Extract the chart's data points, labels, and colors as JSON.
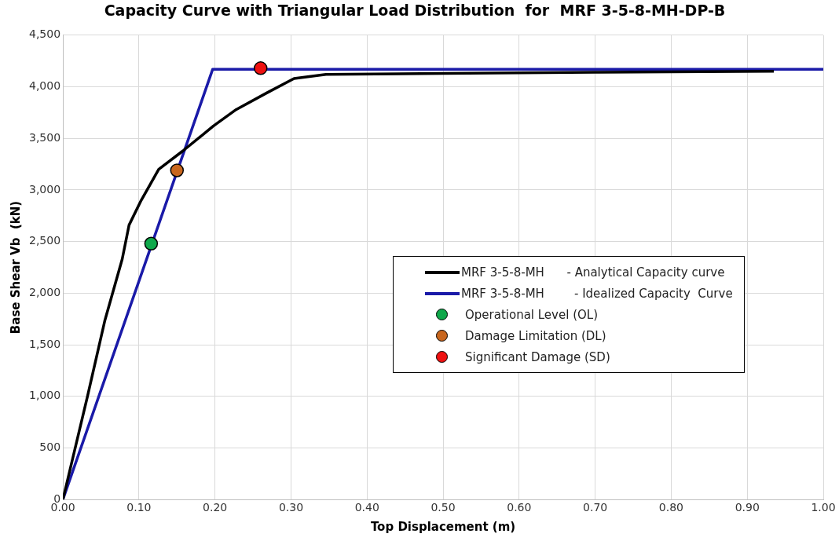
{
  "chart_data": {
    "type": "line",
    "title": "Capacity Curve with Triangular Load Distribution  for  MRF 3-5-8-MH-DP-B",
    "xlabel": "Top Displacement (m)",
    "ylabel": "Base Shear Vb  (kN)",
    "xlim": [
      0,
      1
    ],
    "xticks": [
      {
        "value": 0,
        "label": "0.00"
      },
      {
        "value": 0.1,
        "label": "0.10"
      },
      {
        "value": 0.2,
        "label": "0.20"
      },
      {
        "value": 0.3,
        "label": "0.30"
      },
      {
        "value": 0.4,
        "label": "0.40"
      },
      {
        "value": 0.5,
        "label": "0.50"
      },
      {
        "value": 0.6,
        "label": "0.60"
      },
      {
        "value": 0.7,
        "label": "0.70"
      },
      {
        "value": 0.8,
        "label": "0.80"
      },
      {
        "value": 0.9,
        "label": "0.90"
      },
      {
        "value": 1,
        "label": "1.00"
      }
    ],
    "ylim": [
      0,
      4500
    ],
    "yticks": [
      0,
      500,
      {
        "value": 1000,
        "label": "1,000"
      },
      {
        "value": 1500,
        "label": "1,500"
      },
      {
        "value": 2000,
        "label": "2,000"
      },
      {
        "value": 2500,
        "label": "2,500"
      },
      {
        "value": 3000,
        "label": "3,000"
      },
      {
        "value": 3500,
        "label": "3,500"
      },
      {
        "value": 4000,
        "label": "4,000"
      },
      {
        "value": 4500,
        "label": "4,500"
      }
    ],
    "grid": true,
    "legend": "right",
    "marker": "none",
    "line_style": "solid",
    "series": [
      {
        "name": "MRF 3-5-8-MH      - Analytical Capacity curve",
        "color": "#000000",
        "x": [
          0,
          0.032,
          0.055,
          0.078,
          0.087,
          0.103,
          0.126,
          0.158,
          0.198,
          0.228,
          0.268,
          0.304,
          0.346,
          0.5,
          0.7,
          0.935
        ],
        "values": [
          0,
          990,
          1730,
          2330,
          2660,
          2900,
          3200,
          3380,
          3620,
          3780,
          3940,
          4080,
          4120,
          4130,
          4140,
          4150
        ]
      },
      {
        "name": "MRF 3-5-8-MH        - Idealized Capacity  Curve",
        "color": "#1a1aa8",
        "x": [
          0,
          0.197,
          1
        ],
        "values": [
          0,
          4170,
          4170
        ]
      },
      {
        "name": "Operational Level (OL)",
        "type": "scatter",
        "marker": "circle",
        "color": "#0fa84a",
        "x": [
          0.116
        ],
        "values": [
          2480
        ]
      },
      {
        "name": "Damage Limitation (DL)",
        "type": "scatter",
        "marker": "circle",
        "color": "#c8661e",
        "x": [
          0.15
        ],
        "values": [
          3190
        ]
      },
      {
        "name": "Significant Damage (SD)",
        "type": "scatter",
        "marker": "circle",
        "color": "#ee1111",
        "x": [
          0.26
        ],
        "values": [
          4180
        ]
      }
    ]
  }
}
